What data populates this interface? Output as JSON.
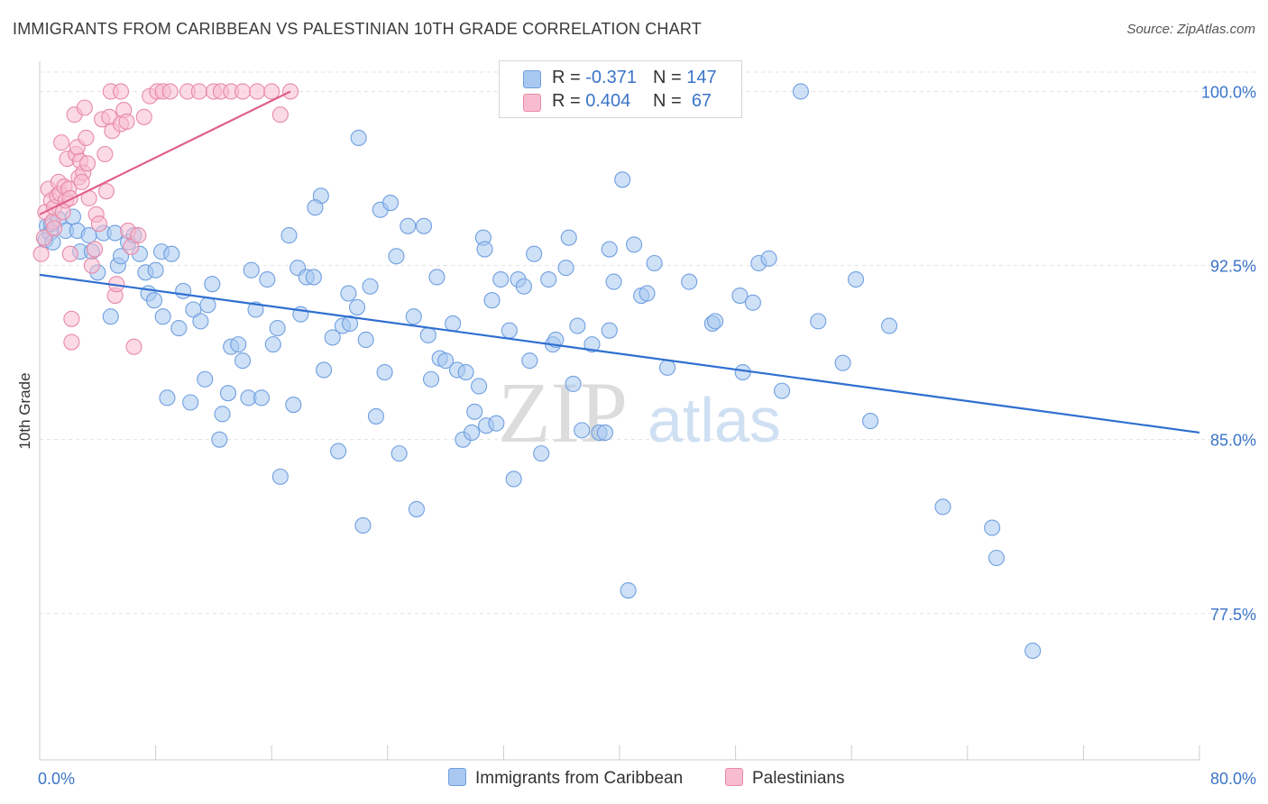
{
  "title": "IMMIGRANTS FROM CARIBBEAN VS PALESTINIAN 10TH GRADE CORRELATION CHART",
  "source": "Source: ZipAtlas.com",
  "watermark": {
    "zip": "ZIP",
    "atlas": "atlas"
  },
  "legend": {
    "rows": [
      {
        "r_label": "R =",
        "r_value": "-0.371",
        "n_label": "N =",
        "n_value": "147",
        "color": "#a8c8f0",
        "border": "#6f9fe0"
      },
      {
        "r_label": "R =",
        "r_value": "0.404",
        "n_label": "N =",
        "n_value": "67",
        "color": "#f8bcd0",
        "border": "#e889a8"
      }
    ]
  },
  "bottom_legend": [
    {
      "label": "Immigrants from Caribbean",
      "color": "#a8c8f0",
      "border": "#6f9fe0"
    },
    {
      "label": "Palestinians",
      "color": "#f8bcd0",
      "border": "#e889a8"
    }
  ],
  "chart_data": {
    "type": "scatter",
    "title": "IMMIGRANTS FROM CARIBBEAN VS PALESTINIAN 10TH GRADE CORRELATION CHART",
    "xlabel": "",
    "ylabel": "10th Grade",
    "xlim": [
      0,
      80
    ],
    "ylim": [
      71.2,
      101.3
    ],
    "x_tick_labels": [
      {
        "value": 0,
        "label": "0.0%"
      },
      {
        "value": 80,
        "label": "80.0%"
      }
    ],
    "y_tick_labels": [
      {
        "value": 100,
        "label": "100.0%"
      },
      {
        "value": 92.5,
        "label": "92.5%"
      },
      {
        "value": 85,
        "label": "85.0%"
      },
      {
        "value": 77.5,
        "label": "77.5%"
      }
    ],
    "grid": "horizontal dashed",
    "legend_position": "top-center",
    "series": [
      {
        "name": "Immigrants from Caribbean",
        "color": "#6f9fe0",
        "fill": "#a8c8f0",
        "trend_color": "#2f6fd0",
        "R": -0.371,
        "N": 147,
        "trendline": [
          [
            0,
            92.1
          ],
          [
            80,
            85.3
          ]
        ],
        "points": [
          [
            0.4,
            93.6
          ],
          [
            0.5,
            94.2
          ],
          [
            0.7,
            93.9
          ],
          [
            0.8,
            94.3
          ],
          [
            1.3,
            94.5
          ],
          [
            1.8,
            94.0
          ],
          [
            2.3,
            94.6
          ],
          [
            2.6,
            94.0
          ],
          [
            2.8,
            93.1
          ],
          [
            3.4,
            93.8
          ],
          [
            3.6,
            93.1
          ],
          [
            4.0,
            92.2
          ],
          [
            4.4,
            93.9
          ],
          [
            4.9,
            90.3
          ],
          [
            5.2,
            93.9
          ],
          [
            5.4,
            92.5
          ],
          [
            5.6,
            92.9
          ],
          [
            6.1,
            93.5
          ],
          [
            6.5,
            93.8
          ],
          [
            6.9,
            93.0
          ],
          [
            7.3,
            92.2
          ],
          [
            7.5,
            91.3
          ],
          [
            7.9,
            91.0
          ],
          [
            8.0,
            92.3
          ],
          [
            8.4,
            93.1
          ],
          [
            8.5,
            90.3
          ],
          [
            8.8,
            86.8
          ],
          [
            9.1,
            93.0
          ],
          [
            9.6,
            89.8
          ],
          [
            9.9,
            91.4
          ],
          [
            10.4,
            86.6
          ],
          [
            10.6,
            90.6
          ],
          [
            11.1,
            90.1
          ],
          [
            11.4,
            87.6
          ],
          [
            11.6,
            90.8
          ],
          [
            11.9,
            91.7
          ],
          [
            12.4,
            85.0
          ],
          [
            12.6,
            86.1
          ],
          [
            13.0,
            87.0
          ],
          [
            13.2,
            89.0
          ],
          [
            13.7,
            89.1
          ],
          [
            14.0,
            88.4
          ],
          [
            14.4,
            86.8
          ],
          [
            14.6,
            92.3
          ],
          [
            14.9,
            90.6
          ],
          [
            15.3,
            86.8
          ],
          [
            15.7,
            91.9
          ],
          [
            16.1,
            89.1
          ],
          [
            16.4,
            89.8
          ],
          [
            16.6,
            83.4
          ],
          [
            17.2,
            93.8
          ],
          [
            17.5,
            86.5
          ],
          [
            17.8,
            92.4
          ],
          [
            18.0,
            90.4
          ],
          [
            18.4,
            92.0
          ],
          [
            18.9,
            92.0
          ],
          [
            19.4,
            95.5
          ],
          [
            19.6,
            88.0
          ],
          [
            20.2,
            89.4
          ],
          [
            20.6,
            84.5
          ],
          [
            20.9,
            89.9
          ],
          [
            21.3,
            91.3
          ],
          [
            21.4,
            90.0
          ],
          [
            21.9,
            90.7
          ],
          [
            22.3,
            81.3
          ],
          [
            22.5,
            89.3
          ],
          [
            22.8,
            91.6
          ],
          [
            23.2,
            86.0
          ],
          [
            23.5,
            94.9
          ],
          [
            23.8,
            87.9
          ],
          [
            24.2,
            95.2
          ],
          [
            24.6,
            92.9
          ],
          [
            24.8,
            84.4
          ],
          [
            25.4,
            94.2
          ],
          [
            25.8,
            90.3
          ],
          [
            26.0,
            82.0
          ],
          [
            26.5,
            94.2
          ],
          [
            26.8,
            89.5
          ],
          [
            27.0,
            87.6
          ],
          [
            27.4,
            92.0
          ],
          [
            27.6,
            88.5
          ],
          [
            28.0,
            88.4
          ],
          [
            28.5,
            90.0
          ],
          [
            28.8,
            88.0
          ],
          [
            29.2,
            85.0
          ],
          [
            29.4,
            87.9
          ],
          [
            29.8,
            85.3
          ],
          [
            30.0,
            86.2
          ],
          [
            30.3,
            87.3
          ],
          [
            30.6,
            93.7
          ],
          [
            30.8,
            85.6
          ],
          [
            31.2,
            91.0
          ],
          [
            31.5,
            85.7
          ],
          [
            31.8,
            91.9
          ],
          [
            32.4,
            89.7
          ],
          [
            32.7,
            83.3
          ],
          [
            33.0,
            91.9
          ],
          [
            33.4,
            91.6
          ],
          [
            33.8,
            88.4
          ],
          [
            34.1,
            93.0
          ],
          [
            34.6,
            84.4
          ],
          [
            35.1,
            91.9
          ],
          [
            35.4,
            89.1
          ],
          [
            35.6,
            89.3
          ],
          [
            36.3,
            92.4
          ],
          [
            36.5,
            93.7
          ],
          [
            36.8,
            87.4
          ],
          [
            37.1,
            89.9
          ],
          [
            37.4,
            85.4
          ],
          [
            38.1,
            89.1
          ],
          [
            38.6,
            85.3
          ],
          [
            39.0,
            85.3
          ],
          [
            39.3,
            89.7
          ],
          [
            39.6,
            91.8
          ],
          [
            40.2,
            96.2
          ],
          [
            40.6,
            78.5
          ],
          [
            41.0,
            93.4
          ],
          [
            41.5,
            91.2
          ],
          [
            41.9,
            91.3
          ],
          [
            42.4,
            92.6
          ],
          [
            43.3,
            88.1
          ],
          [
            44.8,
            91.8
          ],
          [
            46.4,
            90.0
          ],
          [
            46.6,
            90.1
          ],
          [
            48.3,
            91.2
          ],
          [
            48.5,
            87.9
          ],
          [
            49.2,
            90.9
          ],
          [
            49.6,
            92.6
          ],
          [
            50.3,
            92.8
          ],
          [
            51.2,
            87.1
          ],
          [
            52.5,
            100.0
          ],
          [
            53.7,
            90.1
          ],
          [
            55.4,
            88.3
          ],
          [
            56.3,
            91.9
          ],
          [
            57.3,
            85.8
          ],
          [
            58.6,
            89.9
          ],
          [
            62.3,
            82.1
          ],
          [
            65.7,
            81.2
          ],
          [
            66.0,
            79.9
          ],
          [
            68.5,
            75.9
          ],
          [
            22.0,
            98.0
          ],
          [
            19.0,
            95.0
          ],
          [
            30.7,
            93.2
          ],
          [
            39.3,
            93.2
          ],
          [
            0.9,
            93.5
          ]
        ]
      },
      {
        "name": "Palestinians",
        "color": "#e889a8",
        "fill": "#f8bcd0",
        "trend_color": "#e0608a",
        "R": 0.404,
        "N": 67,
        "trendline": [
          [
            0,
            94.7
          ],
          [
            17.3,
            100.0
          ]
        ],
        "points": [
          [
            0.1,
            93.0
          ],
          [
            0.3,
            93.7
          ],
          [
            0.4,
            94.8
          ],
          [
            0.6,
            95.8
          ],
          [
            0.8,
            95.3
          ],
          [
            0.9,
            94.4
          ],
          [
            1.0,
            95.0
          ],
          [
            1.2,
            95.5
          ],
          [
            1.3,
            96.1
          ],
          [
            1.4,
            95.6
          ],
          [
            1.5,
            97.8
          ],
          [
            1.6,
            94.8
          ],
          [
            1.7,
            95.9
          ],
          [
            1.8,
            95.3
          ],
          [
            1.9,
            97.1
          ],
          [
            2.0,
            95.8
          ],
          [
            2.1,
            95.4
          ],
          [
            2.1,
            93.0
          ],
          [
            2.2,
            90.2
          ],
          [
            2.2,
            89.2
          ],
          [
            2.4,
            99.0
          ],
          [
            2.5,
            97.3
          ],
          [
            2.6,
            97.6
          ],
          [
            2.7,
            96.3
          ],
          [
            2.8,
            97.0
          ],
          [
            3.0,
            96.5
          ],
          [
            3.1,
            99.3
          ],
          [
            3.2,
            98.0
          ],
          [
            3.3,
            96.9
          ],
          [
            3.4,
            95.4
          ],
          [
            3.6,
            92.5
          ],
          [
            3.8,
            93.2
          ],
          [
            3.9,
            94.7
          ],
          [
            4.1,
            94.3
          ],
          [
            4.3,
            98.8
          ],
          [
            4.5,
            97.3
          ],
          [
            4.6,
            95.7
          ],
          [
            4.8,
            98.9
          ],
          [
            5.0,
            98.3
          ],
          [
            5.2,
            91.2
          ],
          [
            5.3,
            91.7
          ],
          [
            5.6,
            98.6
          ],
          [
            5.8,
            99.2
          ],
          [
            6.0,
            98.7
          ],
          [
            6.1,
            94.0
          ],
          [
            6.3,
            93.3
          ],
          [
            6.5,
            89.0
          ],
          [
            6.8,
            93.8
          ],
          [
            7.2,
            98.9
          ],
          [
            7.6,
            99.8
          ],
          [
            8.1,
            100.0
          ],
          [
            8.5,
            100.0
          ],
          [
            9.0,
            100.0
          ],
          [
            10.2,
            100.0
          ],
          [
            11.0,
            100.0
          ],
          [
            12.0,
            100.0
          ],
          [
            12.5,
            100.0
          ],
          [
            13.2,
            100.0
          ],
          [
            14.0,
            100.0
          ],
          [
            15.0,
            100.0
          ],
          [
            16.0,
            100.0
          ],
          [
            16.6,
            99.0
          ],
          [
            17.3,
            100.0
          ],
          [
            4.9,
            100.0
          ],
          [
            5.6,
            100.0
          ],
          [
            1.0,
            94.1
          ],
          [
            2.9,
            96.1
          ]
        ]
      }
    ]
  }
}
